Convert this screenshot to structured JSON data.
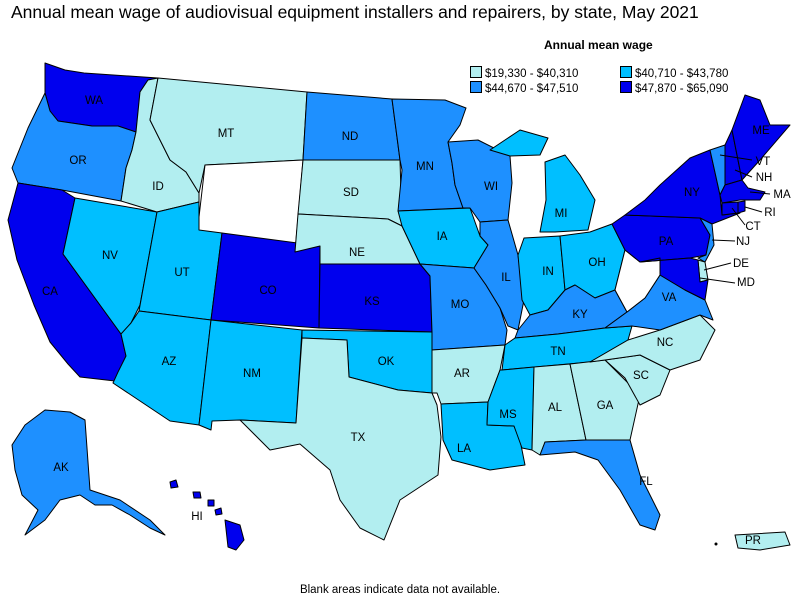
{
  "title": "Annual mean wage of audiovisual equipment installers and repairers, by state, May 2021",
  "legend": {
    "title": "Annual mean wage",
    "items": [
      {
        "key": "t1",
        "label": "$19,330 - $40,310",
        "color": "#b2eef0"
      },
      {
        "key": "t2",
        "label": "$40,710 - $43,780",
        "color": "#00bfff"
      },
      {
        "key": "t3",
        "label": "$44,670 - $47,510",
        "color": "#1e90ff"
      },
      {
        "key": "t4",
        "label": "$47,870 - $65,090",
        "color": "#0000ee"
      }
    ],
    "na_color": "#ffffff"
  },
  "states": {
    "WA": "t4",
    "OR": "t3",
    "CA": "t4",
    "NV": "t2",
    "ID": "t1",
    "MT": "t1",
    "WY": "na",
    "UT": "t2",
    "CO": "t4",
    "AZ": "t2",
    "NM": "t2",
    "ND": "t3",
    "SD": "t1",
    "NE": "t1",
    "KS": "t4",
    "OK": "t2",
    "TX": "t1",
    "MN": "t3",
    "IA": "t2",
    "MO": "t3",
    "AR": "t1",
    "LA": "t2",
    "WI": "t3",
    "IL": "t3",
    "MI": "t2",
    "IN": "t2",
    "OH": "t2",
    "KY": "t3",
    "TN": "t2",
    "MS": "t2",
    "AL": "t1",
    "GA": "t1",
    "FL": "t3",
    "SC": "t1",
    "NC": "t1",
    "VA": "t3",
    "WV": "na",
    "PA": "t4",
    "NY": "t4",
    "VT": "t3",
    "NH": "t4",
    "ME": "t4",
    "MA": "t4",
    "RI": "t4",
    "CT": "t4",
    "NJ": "t3",
    "DE": "t1",
    "MD": "t4",
    "AK": "t3",
    "HI": "t4",
    "PR": "t1"
  },
  "labels": {
    "WA": "WA",
    "OR": "OR",
    "CA": "CA",
    "NV": "NV",
    "ID": "ID",
    "MT": "MT",
    "UT": "UT",
    "CO": "CO",
    "AZ": "AZ",
    "NM": "NM",
    "ND": "ND",
    "SD": "SD",
    "NE": "NE",
    "KS": "KS",
    "OK": "OK",
    "TX": "TX",
    "MN": "MN",
    "IA": "IA",
    "MO": "MO",
    "AR": "AR",
    "LA": "LA",
    "WI": "WI",
    "IL": "IL",
    "MI": "MI",
    "IN": "IN",
    "OH": "OH",
    "KY": "KY",
    "TN": "TN",
    "MS": "MS",
    "AL": "AL",
    "GA": "GA",
    "FL": "FL",
    "SC": "SC",
    "NC": "NC",
    "VA": "VA",
    "PA": "PA",
    "NY": "NY",
    "VT": "VT",
    "NH": "NH",
    "ME": "ME",
    "MA": "MA",
    "RI": "RI",
    "CT": "CT",
    "NJ": "NJ",
    "DE": "DE",
    "MD": "MD",
    "AK": "AK",
    "HI": "HI",
    "PR": "PR"
  },
  "footnote": "Blank areas indicate data not available."
}
